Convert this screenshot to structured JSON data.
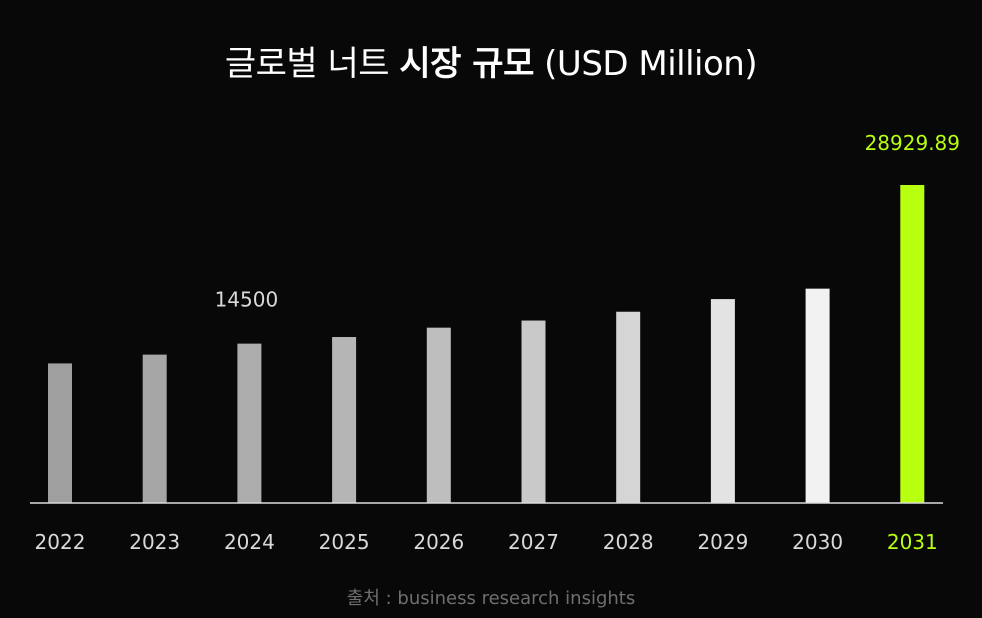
{
  "title": {
    "part1": "글로벌 너트 ",
    "bold": "시장 규모",
    "part2": " (USD Million)"
  },
  "source": "출처 : business research insights",
  "colors": {
    "background": "#090808",
    "highlight": "#b8ff10",
    "label": "#d9d9d9",
    "source": "#6f6f6f"
  },
  "chart_data": {
    "type": "bar",
    "title": "글로벌 너트 시장 규모 (USD Million)",
    "categories": [
      "2022",
      "2023",
      "2024",
      "2025",
      "2026",
      "2027",
      "2028",
      "2029",
      "2030",
      "2031"
    ],
    "values": [
      12700,
      13500,
      14500,
      15100,
      15950,
      16600,
      17400,
      18550,
      19500,
      28929.89
    ],
    "data_labels": [
      {
        "index": 2,
        "text": "14500"
      },
      {
        "index": 9,
        "text": "28929.89"
      }
    ],
    "bar_colors": [
      "#9f9f9f",
      "#a6a6a6",
      "#adadad",
      "#b5b5b5",
      "#bebebe",
      "#c9c9c9",
      "#d5d5d5",
      "#e3e3e3",
      "#f2f2f2",
      "#b8ff10"
    ],
    "highlight_index": 9,
    "xlabel": "",
    "ylabel": "",
    "grid": false,
    "legend": "none"
  }
}
